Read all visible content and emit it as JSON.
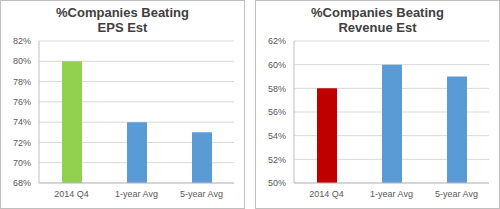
{
  "chart_data": [
    {
      "type": "bar",
      "title": "%Companies Beating EPS Est",
      "categories": [
        "2014 Q4",
        "1-year Avg",
        "5-year Avg"
      ],
      "values": [
        80,
        74,
        73
      ],
      "colors": [
        "#92d050",
        "#5b9bd5",
        "#5b9bd5"
      ],
      "ylim": [
        68,
        82
      ],
      "yticks": [
        {
          "value": 68,
          "label": "68%"
        },
        {
          "value": 70,
          "label": "70%"
        },
        {
          "value": 72,
          "label": "72%"
        },
        {
          "value": 74,
          "label": "74%"
        },
        {
          "value": 76,
          "label": "76%"
        },
        {
          "value": 78,
          "label": "78%"
        },
        {
          "value": 80,
          "label": "80%"
        },
        {
          "value": 82,
          "label": "82%"
        }
      ],
      "grid": true
    },
    {
      "type": "bar",
      "title": "%Companies Beating Revenue Est",
      "categories": [
        "2014 Q4",
        "1-year Avg",
        "5-year Avg"
      ],
      "values": [
        58,
        60,
        59
      ],
      "colors": [
        "#c00000",
        "#5b9bd5",
        "#5b9bd5"
      ],
      "ylim": [
        50,
        62
      ],
      "yticks": [
        {
          "value": 50,
          "label": "50%"
        },
        {
          "value": 52,
          "label": "52%"
        },
        {
          "value": 54,
          "label": "54%"
        },
        {
          "value": 56,
          "label": "56%"
        },
        {
          "value": 58,
          "label": "58%"
        },
        {
          "value": 60,
          "label": "60%"
        },
        {
          "value": 62,
          "label": "62%"
        }
      ],
      "grid": true
    }
  ]
}
